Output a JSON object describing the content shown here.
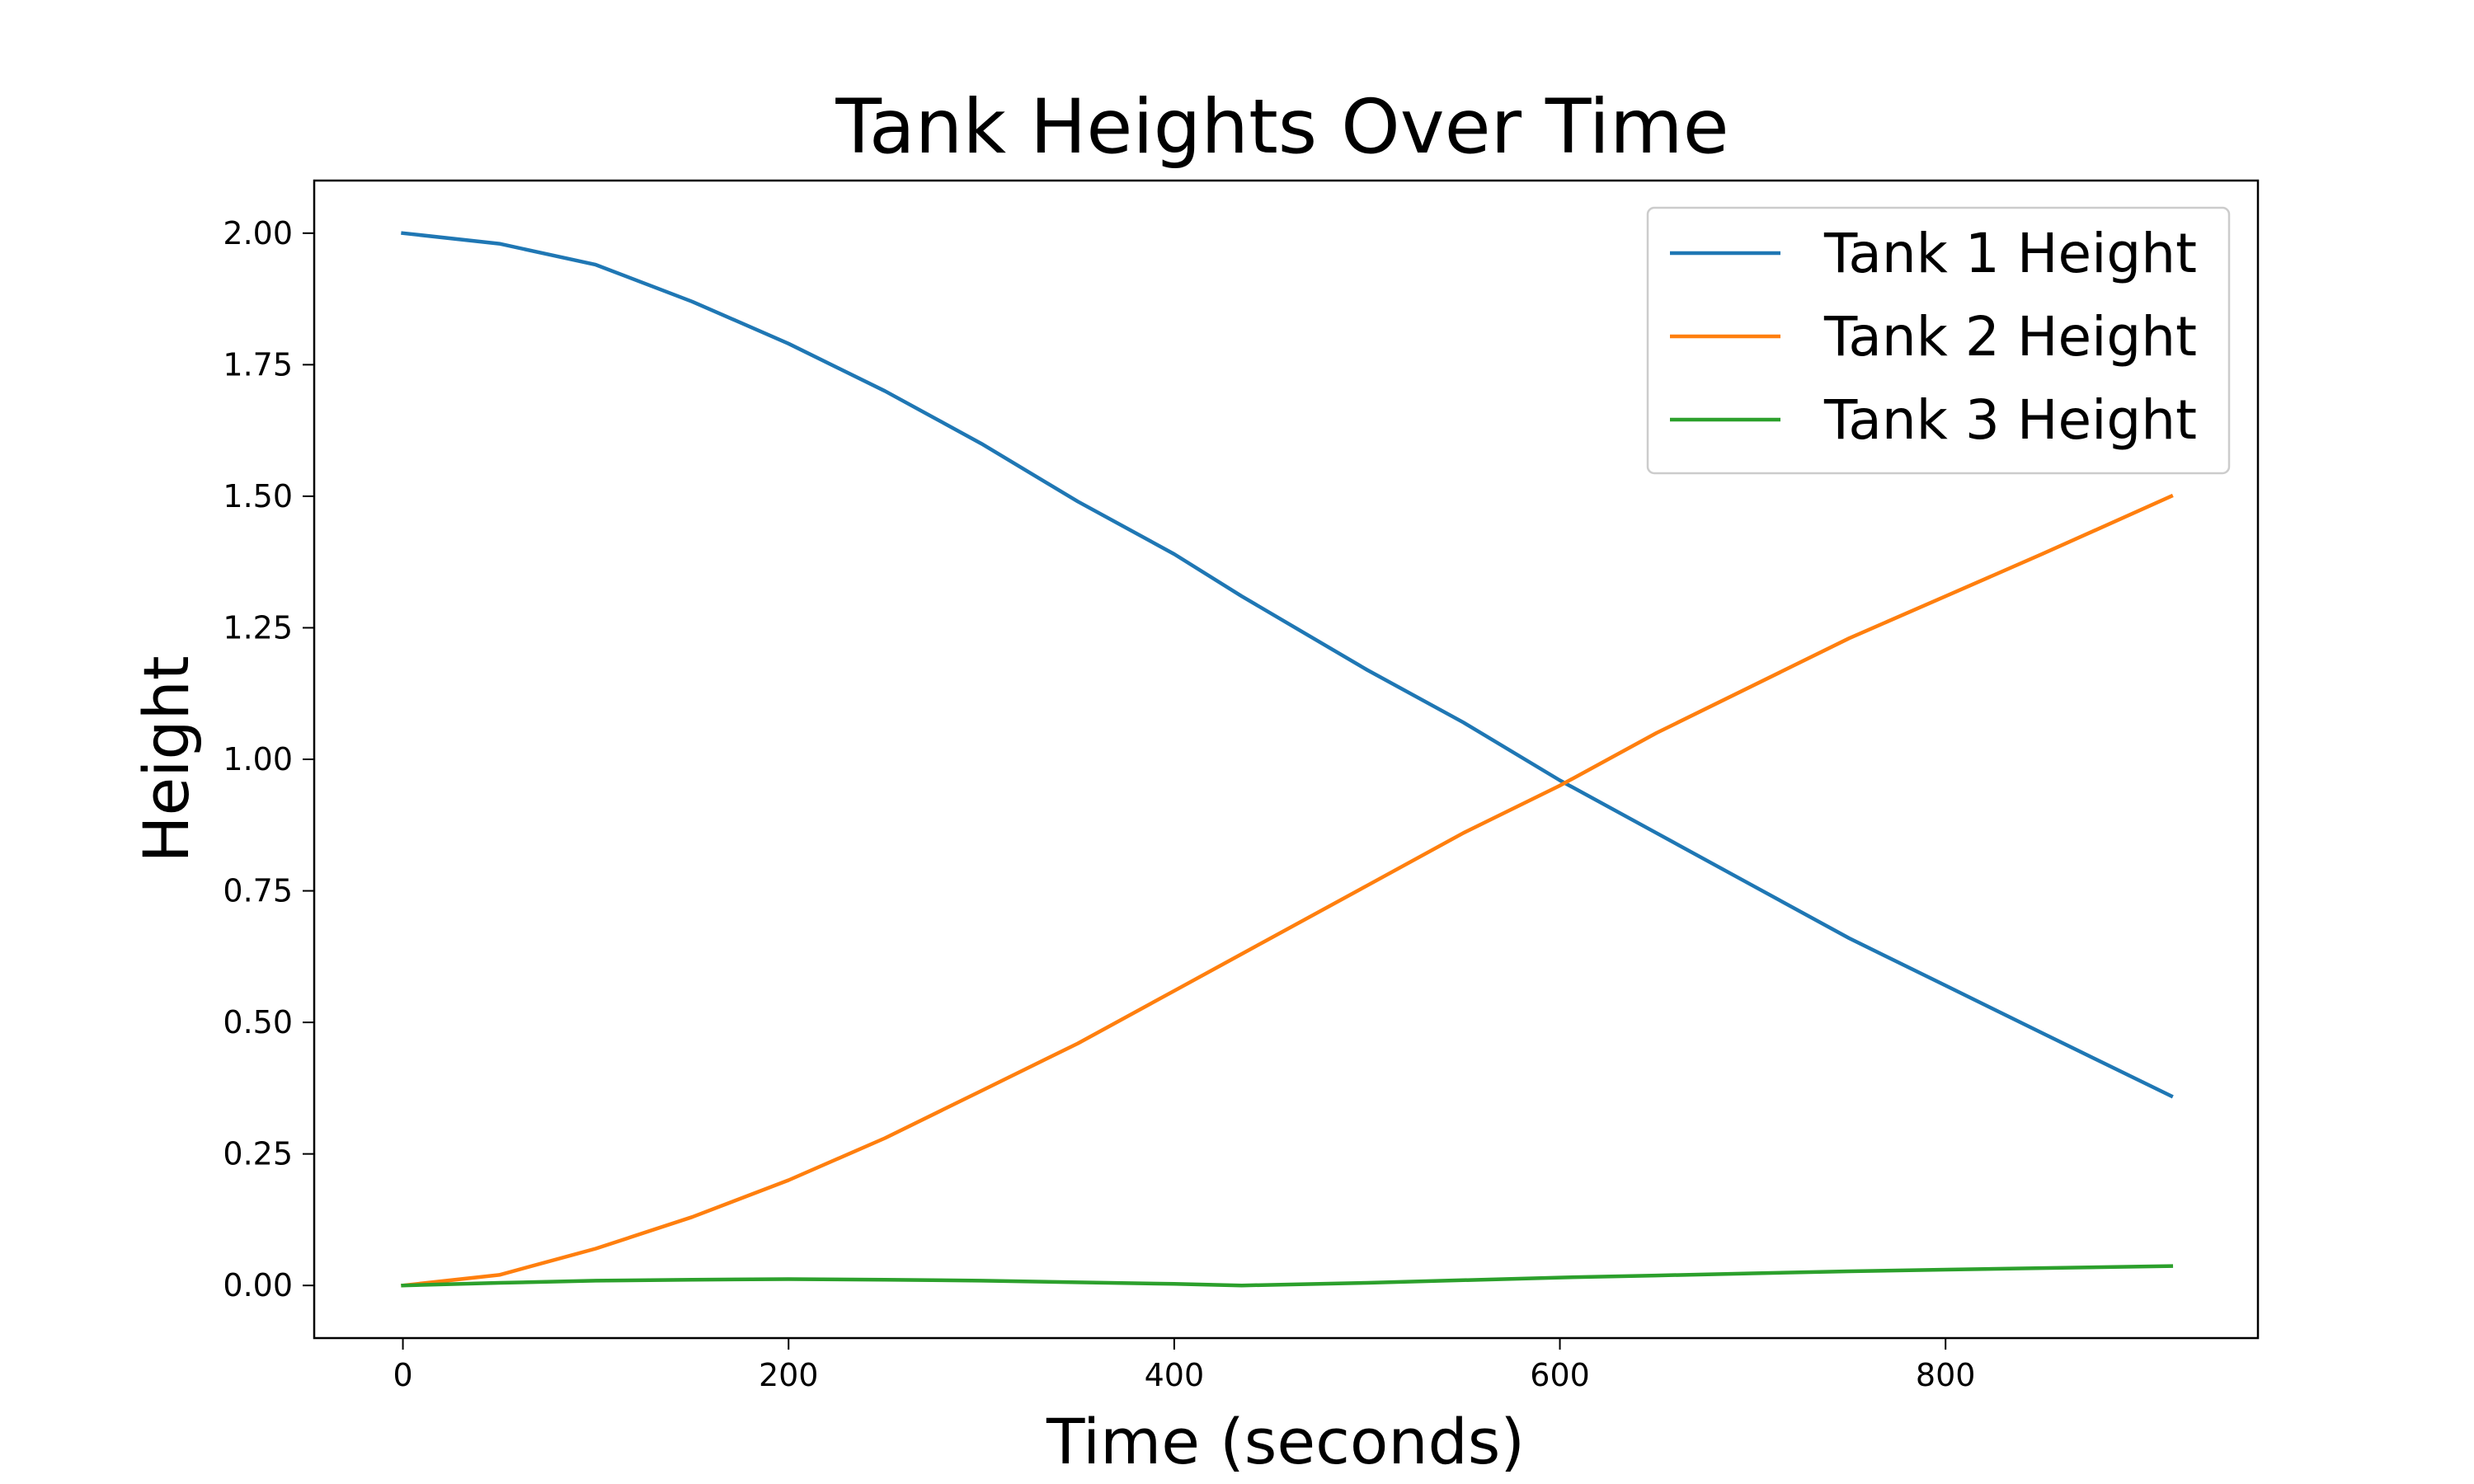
{
  "chart_data": {
    "type": "line",
    "title": "Tank Heights Over Time",
    "xlabel": "Time (seconds)",
    "ylabel": "Height",
    "xlim": [
      -46,
      962
    ],
    "ylim": [
      -0.1,
      2.1
    ],
    "x_ticks": [
      0,
      200,
      400,
      600,
      800
    ],
    "x_tick_labels": [
      "0",
      "200",
      "400",
      "600",
      "800"
    ],
    "y_ticks": [
      0,
      0.25,
      0.5,
      0.75,
      1.0,
      1.25,
      1.5,
      1.75,
      2.0
    ],
    "y_tick_labels": [
      "0.00",
      "0.25",
      "0.50",
      "0.75",
      "1.00",
      "1.25",
      "1.50",
      "1.75",
      "2.00"
    ],
    "grid": false,
    "legend_position": "top-right",
    "x": [
      0,
      50,
      100,
      150,
      200,
      250,
      300,
      350,
      400,
      435,
      500,
      550,
      600,
      650,
      700,
      750,
      800,
      850,
      917
    ],
    "series": [
      {
        "name": "Tank 1 Height",
        "color": "#1f77b4",
        "values": [
          2.0,
          1.98,
          1.94,
          1.87,
          1.79,
          1.7,
          1.6,
          1.49,
          1.39,
          1.31,
          1.17,
          1.07,
          0.96,
          0.86,
          0.76,
          0.66,
          0.57,
          0.48,
          0.36
        ]
      },
      {
        "name": "Tank 2 Height",
        "color": "#ff7f0e",
        "values": [
          0.0,
          0.02,
          0.07,
          0.13,
          0.2,
          0.28,
          0.37,
          0.46,
          0.56,
          0.63,
          0.76,
          0.86,
          0.95,
          1.05,
          1.14,
          1.23,
          1.31,
          1.39,
          1.5
        ]
      },
      {
        "name": "Tank 3 Height",
        "color": "#2ca02c",
        "values": [
          0.0,
          0.005,
          0.009,
          0.011,
          0.012,
          0.011,
          0.009,
          0.006,
          0.003,
          0.0,
          0.005,
          0.01,
          0.015,
          0.019,
          0.023,
          0.027,
          0.03,
          0.033,
          0.037
        ]
      }
    ]
  }
}
